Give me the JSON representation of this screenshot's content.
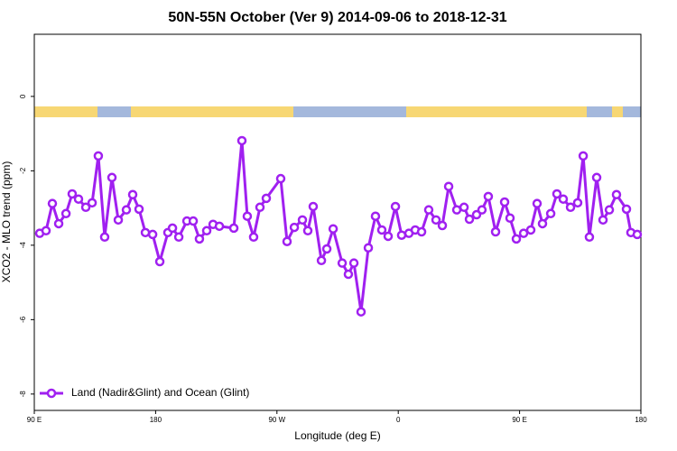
{
  "chart_data": {
    "type": "line",
    "title": "50N-55N October (Ver 9)   2014-09-06 to 2018-12-31",
    "xlabel": "Longitude (deg E)",
    "ylabel": "XCO2 - MLO trend (ppm)",
    "x": [
      94.0,
      98.7,
      103.4,
      108.1,
      113.5,
      118.1,
      122.8,
      128.2,
      132.9,
      137.5,
      142.2,
      147.6,
      152.3,
      158.3,
      163.0,
      167.7,
      172.4,
      177.8,
      183.1,
      189.1,
      192.5,
      197.2,
      203.2,
      207.9,
      212.5,
      217.9,
      222.6,
      227.3,
      238.0,
      244.0,
      248.0,
      252.7,
      257.4,
      262.1,
      272.8,
      277.5,
      282.9,
      288.9,
      292.9,
      296.9,
      303.0,
      307.0,
      311.7,
      318.4,
      323.0,
      327.1,
      332.4,
      337.8,
      343.1,
      347.8,
      352.5,
      357.9,
      362.5,
      367.9,
      372.6,
      377.3,
      382.6,
      388.0,
      392.7,
      397.4,
      403.4,
      408.8,
      412.8,
      418.1,
      422.1,
      426.8,
      432.2,
      438.9,
      442.9,
      447.6,
      453.0,
      458.3,
      463.0,
      467.0,
      473.1,
      477.7,
      482.4,
      487.8,
      493.1,
      497.2,
      501.8,
      507.2,
      511.9,
      516.6,
      521.9,
      529.3,
      532.6,
      537.3
    ],
    "series": [
      {
        "name": "Land (Nadir&Glint) and Ocean (Glint)",
        "color": "#a020f0",
        "values": [
          -3.68,
          -3.61,
          -2.88,
          -3.42,
          -3.15,
          -2.62,
          -2.76,
          -2.98,
          -2.86,
          -1.6,
          -3.78,
          -2.18,
          -3.32,
          -3.05,
          -2.64,
          -3.03,
          -3.66,
          -3.71,
          -4.44,
          -3.66,
          -3.54,
          -3.78,
          -3.35,
          -3.35,
          -3.83,
          -3.61,
          -3.44,
          -3.49,
          -3.54,
          -1.19,
          -3.22,
          -3.78,
          -2.98,
          -2.74,
          -2.21,
          -3.9,
          -3.52,
          -3.32,
          -3.61,
          -2.96,
          -4.41,
          -4.1,
          -3.56,
          -4.48,
          -4.78,
          -4.48,
          -5.79,
          -4.07,
          -3.22,
          -3.59,
          -3.76,
          -2.96,
          -3.73,
          -3.68,
          -3.59,
          -3.64,
          -3.05,
          -3.32,
          -3.47,
          -2.42,
          -3.05,
          -2.98,
          -3.3,
          -3.18,
          -3.05,
          -2.69,
          -3.64,
          -2.84,
          -3.27,
          -3.83,
          -3.68,
          -3.59,
          -2.88,
          -3.42,
          -3.15,
          -2.62,
          -2.76,
          -2.98,
          -2.86,
          -1.6,
          -3.78,
          -2.18,
          -3.32,
          -3.05,
          -2.64,
          -3.03,
          -3.66,
          -3.71
        ]
      }
    ],
    "xlim": [
      90,
      540
    ],
    "xticks": [
      {
        "value": 90,
        "label": "90 E"
      },
      180,
      {
        "value": 270,
        "label": "90 W"
      },
      {
        "value": 360,
        "label": "0"
      },
      {
        "value": 450,
        "label": "90 E"
      },
      {
        "value": 540,
        "label": "180"
      }
    ],
    "ylim": [
      -8.44,
      1.67
    ],
    "yticks": [
      0,
      -2,
      -4,
      -6,
      -8
    ],
    "legend": "bottomleft",
    "grid": false
  }
}
